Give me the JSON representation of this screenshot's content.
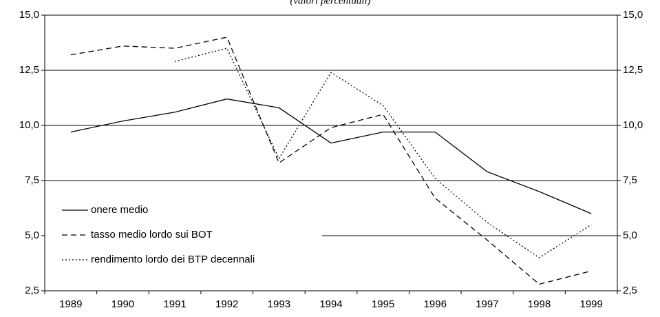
{
  "chart_data": {
    "type": "line",
    "title": "(valori percentuali)",
    "categories": [
      "1989",
      "1990",
      "1991",
      "1992",
      "1993",
      "1994",
      "1995",
      "1996",
      "1997",
      "1998",
      "1999"
    ],
    "series": [
      {
        "name": "onere medio",
        "color": "#000000",
        "dash": "solid",
        "values": [
          9.7,
          10.2,
          10.6,
          11.2,
          10.8,
          9.2,
          9.7,
          9.7,
          7.9,
          7.0,
          6.0
        ]
      },
      {
        "name": "tasso medio lordo sui BOT",
        "color": "#000000",
        "dash": "dashed",
        "values": [
          13.2,
          13.6,
          13.5,
          14.0,
          8.3,
          9.9,
          10.5,
          6.7,
          4.8,
          2.8,
          3.4
        ]
      },
      {
        "name": "rendimento lordo dei BTP decennali",
        "color": "#000000",
        "dash": "dotted",
        "values": [
          null,
          null,
          12.9,
          13.5,
          8.5,
          12.4,
          10.9,
          7.6,
          5.6,
          4.0,
          5.5
        ]
      }
    ],
    "ylim": [
      2.5,
      15.0
    ],
    "yticks": [
      {
        "value": 2.5,
        "label": "2,5"
      },
      {
        "value": 5.0,
        "label": "5,0"
      },
      {
        "value": 7.5,
        "label": "7,5"
      },
      {
        "value": 10.0,
        "label": "10,0"
      },
      {
        "value": 12.5,
        "label": "12,5"
      },
      {
        "value": 15.0,
        "label": "15,0"
      }
    ],
    "y2lim": [
      2.5,
      15.0
    ],
    "y2ticks": [
      {
        "value": 2.5,
        "label": "2,5"
      },
      {
        "value": 5.0,
        "label": "5,0"
      },
      {
        "value": 7.5,
        "label": "7,5"
      },
      {
        "value": 10.0,
        "label": "10,0"
      },
      {
        "value": 12.5,
        "label": "12,5"
      },
      {
        "value": 15.0,
        "label": "15,0"
      }
    ],
    "grid": true,
    "legend": "lower-left"
  }
}
